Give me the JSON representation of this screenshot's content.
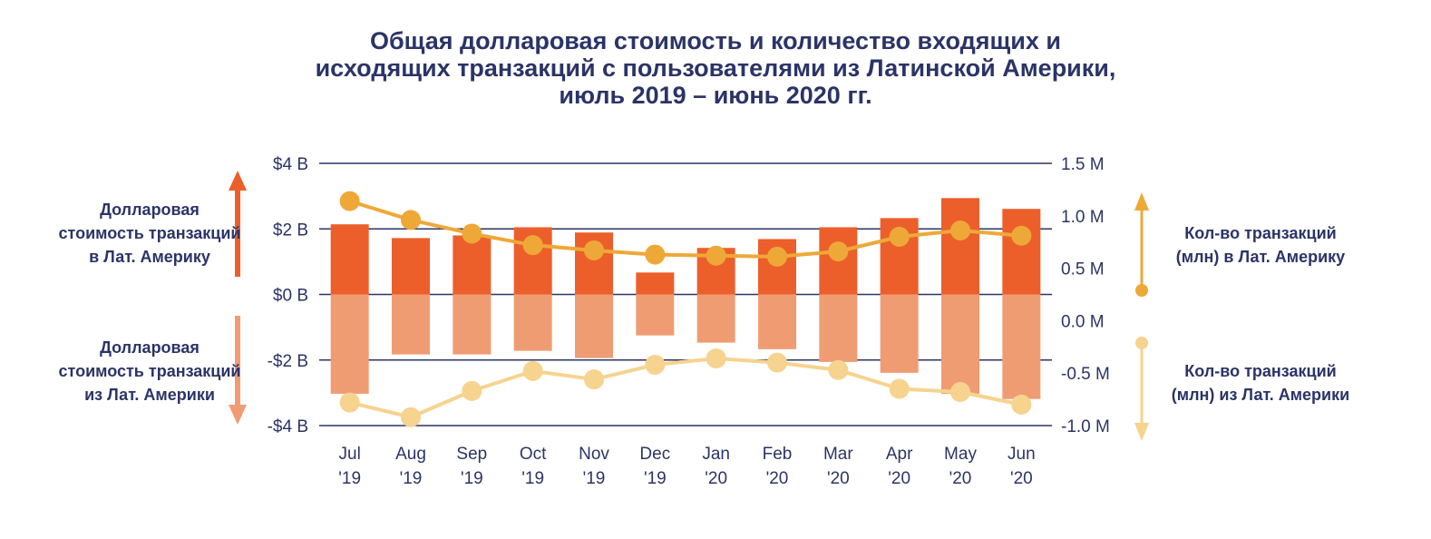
{
  "chart_data": {
    "type": "bar",
    "title": [
      "Общая долларовая стоимость и количество входящих и",
      "исходящих транзакций с пользователями из Латинской Америки,",
      "июль 2019 – июнь 2020 гг."
    ],
    "categories": [
      [
        "Jul",
        "'19"
      ],
      [
        "Aug",
        "'19"
      ],
      [
        "Sep",
        "'19"
      ],
      [
        "Oct",
        "'19"
      ],
      [
        "Nov",
        "'19"
      ],
      [
        "Dec",
        "'19"
      ],
      [
        "Jan",
        "'20"
      ],
      [
        "Feb",
        "'20"
      ],
      [
        "Mar",
        "'20"
      ],
      [
        "Apr",
        "'20"
      ],
      [
        "May",
        "'20"
      ],
      [
        "Jun",
        "'20"
      ]
    ],
    "left_axis": {
      "ylim": [
        -4,
        4
      ],
      "ticks": [
        4,
        2,
        0,
        -2,
        -4
      ],
      "tick_labels": [
        "$4 B",
        "$2 B",
        "$0 B",
        "-$2 B",
        "-$4 B"
      ],
      "unit": "USD billions"
    },
    "right_axis": {
      "ylim": [
        -1.0,
        1.5
      ],
      "ticks": [
        1.5,
        1.0,
        0.5,
        0.0,
        -0.5,
        -1.0
      ],
      "tick_labels": [
        "1.5 M",
        "1.0 M",
        "0.5 M",
        "0.0 M",
        "-0.5 M",
        "-1.0 M"
      ],
      "unit": "transactions millions"
    },
    "series": [
      {
        "name": "Долларовая стоимость транзакций в Лат. Америку",
        "type": "bar",
        "axis": "left",
        "color": "#ec5f2b",
        "values": [
          2.14,
          1.72,
          1.8,
          2.05,
          1.89,
          0.67,
          1.42,
          1.69,
          2.05,
          2.33,
          2.94,
          2.61
        ]
      },
      {
        "name": "Долларовая стоимость транзакций из Лат. Америки",
        "type": "bar",
        "axis": "left",
        "color": "#f09c73",
        "values": [
          -3.03,
          -1.83,
          -1.83,
          -1.72,
          -1.94,
          -1.25,
          -1.47,
          -1.67,
          -2.06,
          -2.39,
          -3.03,
          -3.19
        ]
      },
      {
        "name": "Кол-во транзакций (млн) в Лат. Америку",
        "type": "line",
        "axis": "right",
        "color": "#eea838",
        "values": [
          1.14,
          0.96,
          0.83,
          0.72,
          0.67,
          0.63,
          0.62,
          0.61,
          0.66,
          0.8,
          0.86,
          0.81
        ]
      },
      {
        "name": "Кол-во транзакций (млн) из Лат. Америки",
        "type": "line",
        "axis": "right",
        "color": "#f6d38e",
        "values": [
          -0.78,
          -0.92,
          -0.67,
          -0.48,
          -0.56,
          -0.42,
          -0.36,
          -0.4,
          -0.47,
          -0.65,
          -0.68,
          -0.8
        ]
      }
    ],
    "legend": {
      "left_top": [
        "Долларовая",
        "стоимость транзакций",
        "в Лат. Америку"
      ],
      "left_bottom": [
        "Долларовая",
        "стоимость транзакций",
        "из Лат. Америки"
      ],
      "right_top": [
        "Кол-во транзакций",
        "(млн) в Лат. Америку"
      ],
      "right_bottom": [
        "Кол-во транзакций",
        "(млн) из Лат. Америки"
      ]
    },
    "grid": true
  },
  "colors": {
    "text": "#2b3467",
    "grid": "#2b3467"
  }
}
